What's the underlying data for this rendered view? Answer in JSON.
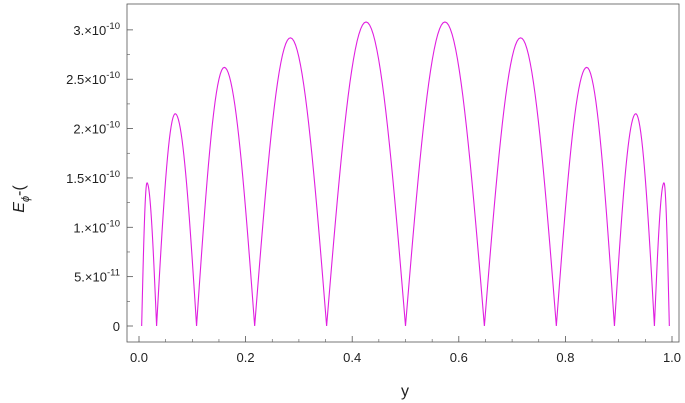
{
  "chart_data": {
    "type": "line",
    "xlabel": "y",
    "ylabel": "E",
    "ylabel_sub": "ϕ",
    "ylabel_tail": "-(",
    "xlim": [
      0,
      1
    ],
    "ylim": [
      0,
      3.1e-10
    ],
    "x_ticks": [
      {
        "value": 0.0,
        "label": "0.0"
      },
      {
        "value": 0.2,
        "label": "0.2"
      },
      {
        "value": 0.4,
        "label": "0.4"
      },
      {
        "value": 0.6,
        "label": "0.6"
      },
      {
        "value": 0.8,
        "label": "0.8"
      },
      {
        "value": 1.0,
        "label": "1.0"
      }
    ],
    "y_ticks": [
      {
        "value": 0,
        "label": "0",
        "mantissa": "",
        "exponent": ""
      },
      {
        "value": 5e-11,
        "label": "5.×10⁻¹¹",
        "mantissa": "5.×10",
        "exponent": "-11"
      },
      {
        "value": 1e-10,
        "label": "1.×10⁻¹⁰",
        "mantissa": "1.×10",
        "exponent": "-10"
      },
      {
        "value": 1.5e-10,
        "label": "1.5×10⁻¹⁰",
        "mantissa": "1.5×10",
        "exponent": "-10"
      },
      {
        "value": 2e-10,
        "label": "2.×10⁻¹⁰",
        "mantissa": "2.×10",
        "exponent": "-10"
      },
      {
        "value": 2.5e-10,
        "label": "2.5×10⁻¹⁰",
        "mantissa": "2.5×10",
        "exponent": "-10"
      },
      {
        "value": 3e-10,
        "label": "3.×10⁻¹⁰",
        "mantissa": "3.×10",
        "exponent": "-10"
      }
    ],
    "grid": false,
    "series": [
      {
        "color": "#e020e0",
        "zeros": [
          0.005,
          0.033,
          0.108,
          0.217,
          0.352,
          0.5,
          0.648,
          0.783,
          0.892,
          0.967,
          0.995
        ],
        "peaks": [
          {
            "x": 0.015,
            "y": 1.45e-10
          },
          {
            "x": 0.068,
            "y": 2.15e-10
          },
          {
            "x": 0.16,
            "y": 2.62e-10
          },
          {
            "x": 0.284,
            "y": 2.92e-10
          },
          {
            "x": 0.426,
            "y": 3.08e-10
          },
          {
            "x": 0.574,
            "y": 3.08e-10
          },
          {
            "x": 0.716,
            "y": 2.92e-10
          },
          {
            "x": 0.84,
            "y": 2.62e-10
          },
          {
            "x": 0.932,
            "y": 2.15e-10
          },
          {
            "x": 0.985,
            "y": 1.45e-10
          }
        ]
      }
    ]
  }
}
